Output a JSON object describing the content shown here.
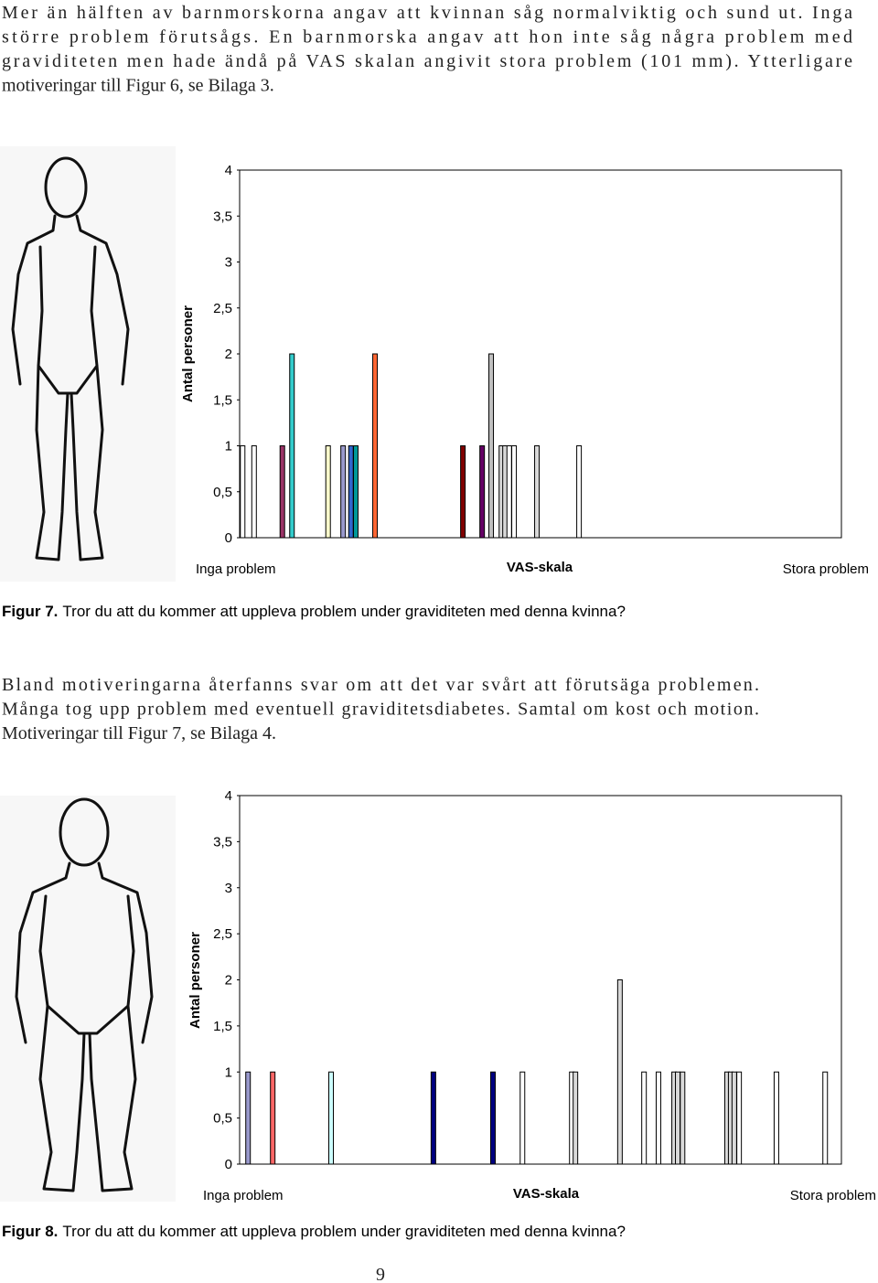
{
  "paragraphs": [
    {
      "lines": [
        "Mer än hälften av barnmorskorna angav att kvinnan såg normalviktig och sund ut. Inga",
        "större problem förutsågs. En barnmorska angav att hon inte såg några problem med",
        "graviditeten men hade ändå på VAS skalan angivit stora problem (101 mm). Ytterligare",
        "motiveringar till Figur 6, se Bilaga 3."
      ]
    },
    {
      "lines": [
        "Bland motiveringarna återfanns svar om att det var svårt att förutsäga problemen.",
        "Många tog upp problem med eventuell graviditetsdiabetes. Samtal om kost och motion.",
        "Motiveringar till Figur 7, se Bilaga 4."
      ]
    }
  ],
  "chart_data": [
    {
      "type": "bar",
      "x": [
        0.5,
        2.4,
        7.1,
        8.7,
        14.7,
        17.2,
        18.5,
        19.3,
        22.5,
        37.1,
        40.3,
        41.8,
        43.5,
        44.1,
        44.8,
        45.6,
        49.4,
        56.4
      ],
      "values": [
        1,
        1,
        1,
        2,
        1,
        1,
        1,
        1,
        2,
        1,
        1,
        2,
        1,
        1,
        1,
        1,
        1,
        1
      ],
      "colors": [
        "#ffffff",
        "#ffffff",
        "#993366",
        "#33cccc",
        "#ffffcc",
        "#9999cc",
        "#3366cc",
        "#009999",
        "#ff6633",
        "#800000",
        "#660066",
        "#c0c0c0",
        "#d9d9d9",
        "#d9d9d9",
        "#ffffff",
        "#ffffff",
        "#d9d9d9",
        "#ffffff"
      ],
      "xlim": [
        0,
        100
      ],
      "ylim": [
        0,
        4
      ],
      "yticks": [
        0,
        {
          "value": 0.5,
          "label": "0,5"
        },
        1,
        {
          "value": 1.5,
          "label": "1,5"
        },
        2,
        {
          "value": 2.5,
          "label": "2,5"
        },
        3,
        {
          "value": 3.5,
          "label": "3,5"
        },
        4
      ],
      "y_label": "Antal personer",
      "x_label": "VAS-skala",
      "x_left_label": "Inga problem",
      "x_right_label": "Stora problem",
      "caption_label": "Figur 7.",
      "caption": "Tror du att du kommer att uppleva problem under graviditeten med denna kvinna?"
    },
    {
      "type": "bar",
      "x": [
        1.4,
        5.5,
        15.2,
        32.2,
        42.1,
        47.0,
        55.2,
        55.8,
        63.2,
        67.2,
        69.6,
        72.2,
        72.8,
        73.6,
        81.0,
        81.6,
        82.2,
        83.0,
        89.2,
        97.3
      ],
      "values": [
        1,
        1,
        1,
        1,
        1,
        1,
        1,
        1,
        2,
        1,
        1,
        1,
        1,
        1,
        1,
        1,
        1,
        1,
        1,
        1
      ],
      "colors": [
        "#9999cc",
        "#ff6666",
        "#ccffff",
        "#000080",
        "#000080",
        "#ffffff",
        "#ffffff",
        "#d9d9d9",
        "#d9d9d9",
        "#ffffff",
        "#ffffff",
        "#d9d9d9",
        "#d9d9d9",
        "#d9d9d9",
        "#d9d9d9",
        "#d9d9d9",
        "#d9d9d9",
        "#ffffff",
        "#ffffff",
        "#ffffff"
      ],
      "xlim": [
        0,
        100
      ],
      "ylim": [
        0,
        4
      ],
      "yticks": [
        0,
        {
          "value": 0.5,
          "label": "0,5"
        },
        1,
        {
          "value": 1.5,
          "label": "1,5"
        },
        2,
        {
          "value": 2.5,
          "label": "2,5"
        },
        3,
        {
          "value": 3.5,
          "label": "3,5"
        },
        4
      ],
      "y_label": "Antal personer",
      "x_label": "VAS-skala",
      "x_left_label": "Inga problem",
      "x_right_label": "Stora problem",
      "caption_label": "Figur 8.",
      "caption": "Tror du att du kommer att uppleva problem under graviditeten med denna kvinna?"
    }
  ],
  "page_number": "9"
}
